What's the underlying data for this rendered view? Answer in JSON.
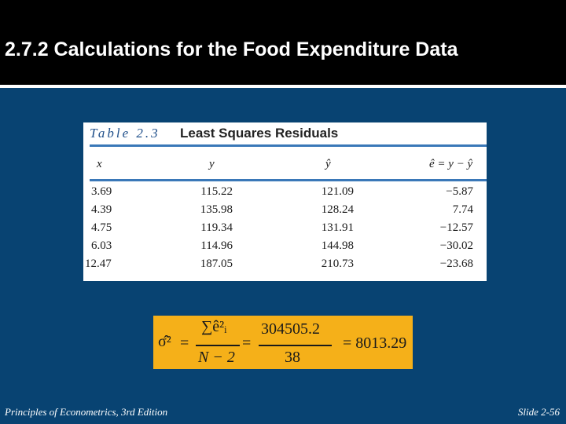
{
  "slide": {
    "title": "2.7.2 Calculations for the Food Expenditure Data",
    "footer_left": "Principles of Econometrics, 3rd Edition",
    "footer_right": "Slide 2-56"
  },
  "table": {
    "label": "Table 2.3",
    "heading": "Least Squares Residuals",
    "columns": [
      "x",
      "y",
      "ŷ",
      "ê = y − ŷ"
    ],
    "rows": [
      [
        "3.69",
        "115.22",
        "121.09",
        "−5.87"
      ],
      [
        "4.39",
        "135.98",
        "128.24",
        "7.74"
      ],
      [
        "4.75",
        "119.34",
        "131.91",
        "−12.57"
      ],
      [
        "6.03",
        "114.96",
        "144.98",
        "−30.02"
      ],
      [
        "12.47",
        "187.05",
        "210.73",
        "−23.68"
      ]
    ]
  },
  "formula": {
    "lhs": "σ̂²",
    "eq": "=",
    "numerator": "∑ê²ᵢ",
    "denominator": "N − 2",
    "numerator_value": "304505.2",
    "denominator_value": "38",
    "result": "= 8013.29"
  },
  "colors": {
    "background": "#084372",
    "title_bar": "#000000",
    "formula_box": "#f5b019",
    "table_rule": "#3a78b8"
  }
}
